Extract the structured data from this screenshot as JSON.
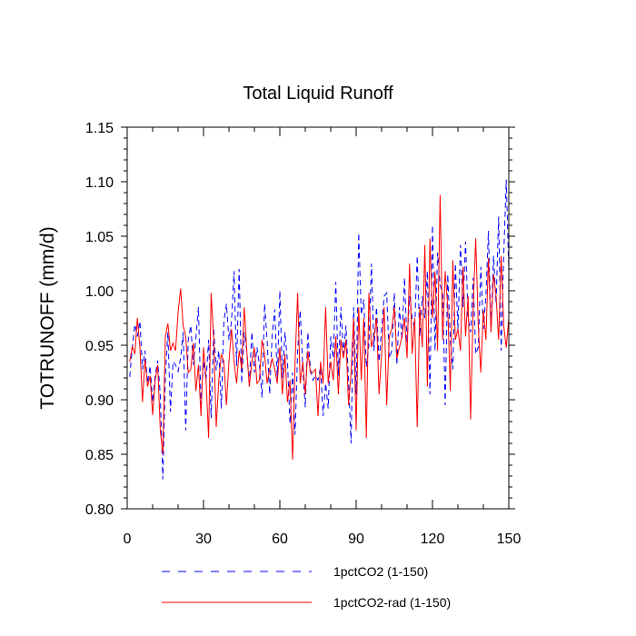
{
  "chart_data": {
    "type": "line",
    "title": "Total Liquid Runoff",
    "xlabel": "",
    "ylabel": "TOTRUNOFF  (mm/d)",
    "xlim": [
      0,
      150
    ],
    "ylim": [
      0.8,
      1.15
    ],
    "xticks": [
      0,
      30,
      60,
      90,
      120,
      150
    ],
    "xtick_labels": [
      "0",
      "30",
      "60",
      "90",
      "120",
      "150"
    ],
    "yticks": [
      0.8,
      0.85,
      0.9,
      0.95,
      1.0,
      1.05,
      1.1,
      1.15
    ],
    "ytick_labels": [
      "0.80",
      "0.85",
      "0.90",
      "0.95",
      "1.00",
      "1.05",
      "1.10",
      "1.15"
    ],
    "grid": false,
    "legend_position": "bottom",
    "series": [
      {
        "name": "1pctCO2 (1-150)",
        "color": "#0000ff",
        "style": "dashed",
        "x": [
          1,
          2,
          3,
          4,
          5,
          6,
          7,
          8,
          9,
          10,
          11,
          12,
          13,
          14,
          15,
          16,
          17,
          18,
          19,
          20,
          21,
          22,
          23,
          24,
          25,
          26,
          27,
          28,
          29,
          30,
          31,
          32,
          33,
          34,
          35,
          36,
          37,
          38,
          39,
          40,
          41,
          42,
          43,
          44,
          45,
          46,
          47,
          48,
          49,
          50,
          51,
          52,
          53,
          54,
          55,
          56,
          57,
          58,
          59,
          60,
          61,
          62,
          63,
          64,
          65,
          66,
          67,
          68,
          69,
          70,
          71,
          72,
          73,
          74,
          75,
          76,
          77,
          78,
          79,
          80,
          81,
          82,
          83,
          84,
          85,
          86,
          87,
          88,
          89,
          90,
          91,
          92,
          93,
          94,
          95,
          96,
          97,
          98,
          99,
          100,
          101,
          102,
          103,
          104,
          105,
          106,
          107,
          108,
          109,
          110,
          111,
          112,
          113,
          114,
          115,
          116,
          117,
          118,
          119,
          120,
          121,
          122,
          123,
          124,
          125,
          126,
          127,
          128,
          129,
          130,
          131,
          132,
          133,
          134,
          135,
          136,
          137,
          138,
          139,
          140,
          141,
          142,
          143,
          144,
          145,
          146,
          147,
          148,
          149,
          150
        ],
        "values": [
          0.921,
          0.948,
          0.969,
          0.958,
          0.972,
          0.928,
          0.945,
          0.915,
          0.931,
          0.898,
          0.922,
          0.936,
          0.905,
          0.827,
          0.921,
          0.962,
          0.889,
          0.935,
          0.932,
          0.926,
          0.938,
          0.962,
          0.872,
          0.955,
          0.968,
          0.932,
          0.957,
          0.985,
          0.896,
          0.935,
          0.918,
          0.955,
          0.883,
          0.965,
          0.927,
          0.945,
          0.892,
          0.972,
          0.988,
          0.955,
          0.972,
          1.018,
          0.931,
          1.02,
          0.915,
          0.962,
          0.945,
          0.915,
          0.962,
          0.925,
          0.948,
          0.932,
          0.902,
          0.988,
          0.955,
          0.905,
          0.96,
          0.983,
          0.918,
          1.0,
          0.92,
          0.962,
          0.935,
          0.878,
          0.925,
          0.868,
          0.945,
          0.982,
          0.93,
          0.893,
          0.962,
          0.928,
          0.918,
          0.922,
          0.918,
          0.93,
          0.885,
          0.915,
          0.892,
          0.958,
          0.938,
          1.008,
          0.922,
          0.985,
          0.942,
          0.968,
          0.918,
          0.86,
          0.985,
          0.905,
          1.053,
          0.978,
          0.992,
          0.93,
          0.95,
          1.025,
          0.945,
          0.985,
          0.935,
          0.965,
          0.995,
          0.998,
          0.938,
          0.945,
          0.998,
          0.932,
          0.985,
          0.955,
          1.012,
          0.952,
          0.995,
          0.975,
          0.965,
          1.032,
          0.958,
          0.995,
          0.975,
          1.018,
          0.905,
          1.06,
          0.945,
          1.035,
          1.005,
          0.998,
          0.895,
          1.015,
          0.955,
          0.928,
          1.025,
          0.965,
          1.042,
          0.985,
          1.045,
          0.975,
          0.962,
          1.012,
          0.942,
          0.948,
          1.022,
          0.965,
          0.995,
          1.055,
          0.962,
          1.032,
          0.988,
          1.068,
          0.945,
          1.032,
          1.102,
          1.018
        ]
      },
      {
        "name": "1pctCO2-rad (1-150)",
        "color": "#ff0000",
        "style": "solid",
        "x": [
          1,
          2,
          3,
          4,
          5,
          6,
          7,
          8,
          9,
          10,
          11,
          12,
          13,
          14,
          15,
          16,
          17,
          18,
          19,
          20,
          21,
          22,
          23,
          24,
          25,
          26,
          27,
          28,
          29,
          30,
          31,
          32,
          33,
          34,
          35,
          36,
          37,
          38,
          39,
          40,
          41,
          42,
          43,
          44,
          45,
          46,
          47,
          48,
          49,
          50,
          51,
          52,
          53,
          54,
          55,
          56,
          57,
          58,
          59,
          60,
          61,
          62,
          63,
          64,
          65,
          66,
          67,
          68,
          69,
          70,
          71,
          72,
          73,
          74,
          75,
          76,
          77,
          78,
          79,
          80,
          81,
          82,
          83,
          84,
          85,
          86,
          87,
          88,
          89,
          90,
          91,
          92,
          93,
          94,
          95,
          96,
          97,
          98,
          99,
          100,
          101,
          102,
          103,
          104,
          105,
          106,
          107,
          108,
          109,
          110,
          111,
          112,
          113,
          114,
          115,
          116,
          117,
          118,
          119,
          120,
          121,
          122,
          123,
          124,
          125,
          126,
          127,
          128,
          129,
          130,
          131,
          132,
          133,
          134,
          135,
          136,
          137,
          138,
          139,
          140,
          141,
          142,
          143,
          144,
          145,
          146,
          147,
          148,
          149,
          150
        ],
        "values": [
          0.935,
          0.949,
          0.942,
          0.975,
          0.948,
          0.898,
          0.937,
          0.912,
          0.922,
          0.886,
          0.918,
          0.932,
          0.872,
          0.85,
          0.958,
          0.97,
          0.945,
          0.952,
          0.945,
          0.98,
          1.002,
          0.968,
          0.958,
          0.925,
          0.928,
          0.952,
          0.908,
          0.932,
          0.885,
          0.948,
          0.918,
          0.865,
          0.998,
          0.955,
          0.875,
          0.918,
          0.942,
          0.935,
          0.895,
          0.935,
          0.965,
          0.935,
          0.915,
          0.945,
          0.928,
          0.985,
          0.945,
          0.912,
          0.935,
          0.948,
          0.915,
          0.918,
          0.955,
          0.942,
          0.915,
          0.928,
          0.938,
          0.928,
          0.915,
          0.948,
          0.905,
          0.942,
          0.898,
          0.918,
          0.845,
          0.935,
          0.998,
          0.915,
          0.935,
          0.905,
          0.945,
          0.925,
          0.925,
          0.928,
          0.885,
          0.935,
          0.915,
          0.985,
          0.915,
          0.935,
          0.918,
          0.958,
          0.905,
          0.955,
          0.938,
          0.955,
          0.895,
          0.925,
          0.975,
          0.872,
          0.985,
          0.918,
          0.975,
          0.865,
          0.998,
          0.948,
          0.958,
          0.975,
          0.905,
          0.942,
          0.985,
          0.895,
          0.958,
          0.965,
          0.985,
          0.938,
          0.948,
          0.958,
          0.975,
          0.938,
          1.025,
          0.942,
          0.975,
          0.875,
          0.985,
          0.948,
          1.042,
          0.912,
          1.048,
          0.975,
          1.018,
          0.945,
          1.088,
          0.955,
          1.018,
          0.985,
          0.908,
          1.028,
          0.955,
          0.965,
          0.945,
          1.022,
          0.958,
          0.995,
          0.882,
          0.985,
          1.048,
          0.968,
          0.925,
          0.982,
          0.955,
          1.03,
          0.962,
          1.015,
          0.995,
          0.955,
          1.032,
          0.968,
          0.948,
          0.975
        ]
      }
    ]
  }
}
